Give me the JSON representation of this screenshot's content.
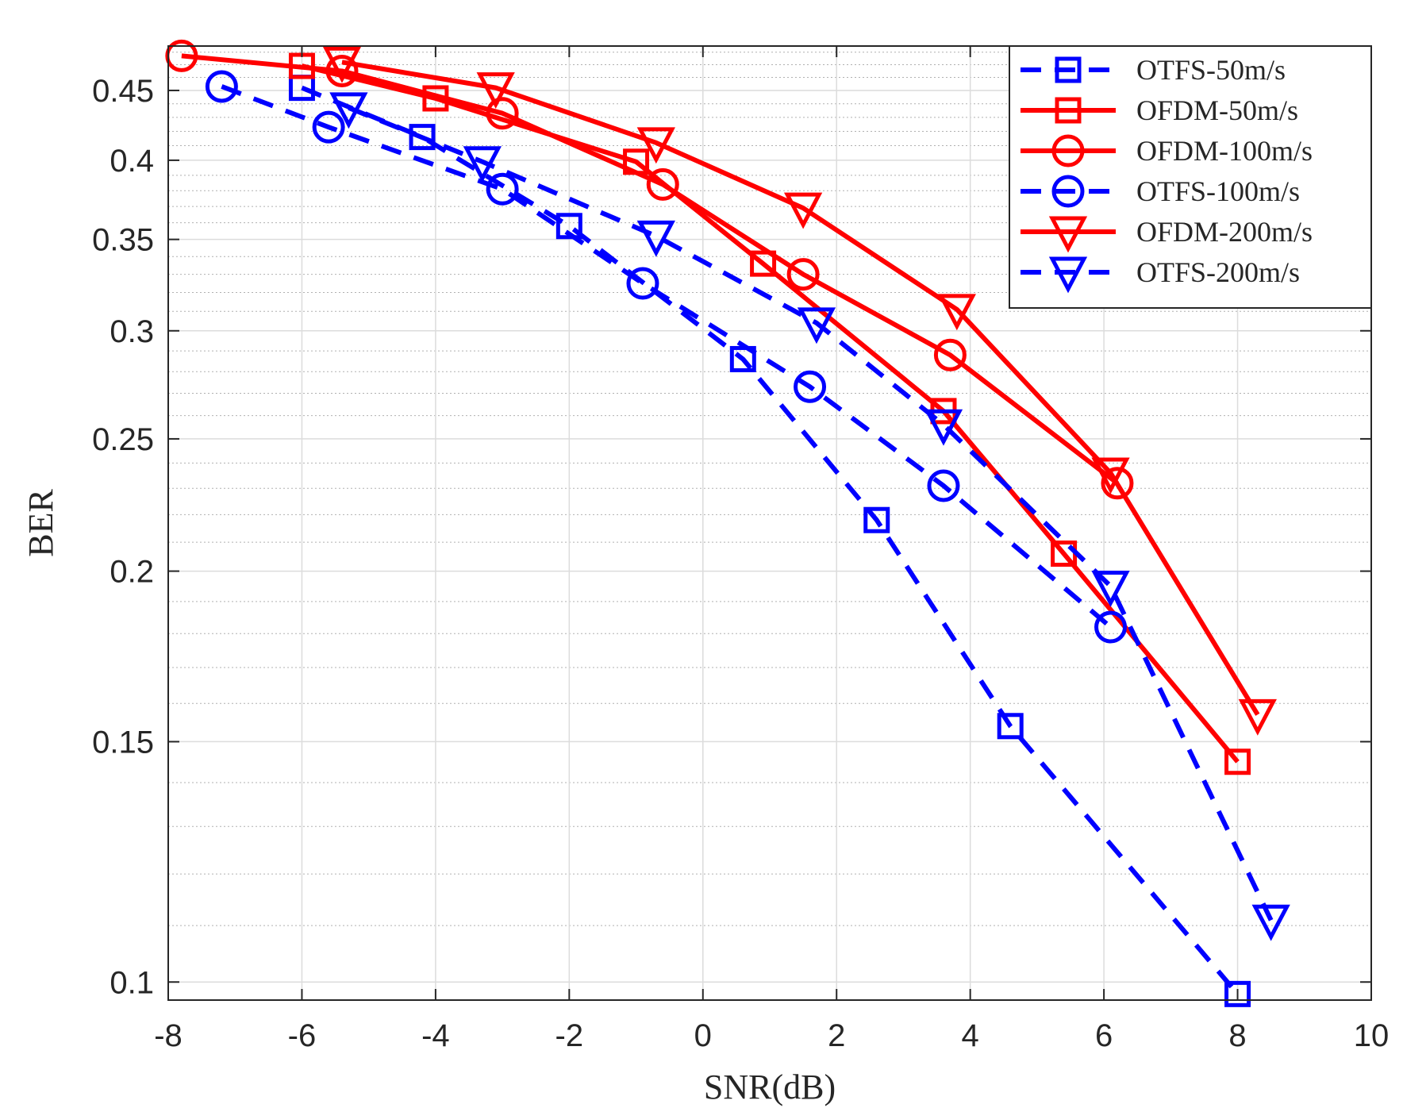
{
  "chart_data": {
    "type": "line",
    "title": "",
    "xlabel": "SNR(dB)",
    "ylabel": "BER",
    "xlim": [
      -8,
      10
    ],
    "ylim": [
      0.097,
      0.485
    ],
    "yscale": "log",
    "grid": true,
    "minor_grid": true,
    "legend_position": "top-right",
    "x_ticks": [
      -8,
      -6,
      -4,
      -2,
      0,
      2,
      4,
      6,
      8,
      10
    ],
    "x_tick_labels": [
      "-8",
      "-6",
      "-4",
      "-2",
      "0",
      "2",
      "4",
      "6",
      "8",
      "10"
    ],
    "y_ticks": [
      0.1,
      0.15,
      0.2,
      0.25,
      0.3,
      0.35,
      0.4,
      0.45
    ],
    "y_tick_labels": [
      "0.1",
      "0.15",
      "0.2",
      "0.25",
      "0.3",
      "0.35",
      "0.4",
      "0.45"
    ],
    "y_minor_ticks": [
      0.11,
      0.12,
      0.13,
      0.14,
      0.16,
      0.17,
      0.18,
      0.19,
      0.21,
      0.22,
      0.23,
      0.24,
      0.26,
      0.27,
      0.28,
      0.29,
      0.31,
      0.32,
      0.33,
      0.34,
      0.36,
      0.37,
      0.38,
      0.39,
      0.41,
      0.42,
      0.43,
      0.44,
      0.46,
      0.47,
      0.48
    ],
    "series": [
      {
        "name": "OTFS-50m/s",
        "color": "#0000ff",
        "dash": "dashed",
        "marker": "square",
        "x": [
          -6.0,
          -4.2,
          -2.0,
          0.6,
          2.6,
          4.6,
          8.0
        ],
        "y": [
          0.452,
          0.416,
          0.358,
          0.286,
          0.218,
          0.154,
          0.098
        ]
      },
      {
        "name": "OFDM-50m/s",
        "color": "#ff0000",
        "dash": "solid",
        "marker": "square",
        "x": [
          -6.0,
          -4.0,
          -1.0,
          0.9,
          3.6,
          5.4,
          8.0
        ],
        "y": [
          0.469,
          0.444,
          0.399,
          0.336,
          0.262,
          0.206,
          0.145
        ]
      },
      {
        "name": "OFDM-100m/s",
        "color": "#ff0000",
        "dash": "solid",
        "marker": "circle",
        "x": [
          -7.8,
          -5.4,
          -3.0,
          -0.6,
          1.5,
          3.7,
          6.2
        ],
        "y": [
          0.477,
          0.465,
          0.433,
          0.384,
          0.33,
          0.288,
          0.232
        ]
      },
      {
        "name": "OTFS-100m/s",
        "color": "#0000ff",
        "dash": "dashed",
        "marker": "circle",
        "x": [
          -7.2,
          -5.6,
          -3.0,
          -0.9,
          1.6,
          3.6,
          6.1
        ],
        "y": [
          0.453,
          0.423,
          0.381,
          0.325,
          0.273,
          0.231,
          0.182
        ]
      },
      {
        "name": "OFDM-200m/s",
        "color": "#ff0000",
        "dash": "solid",
        "marker": "triangle-down",
        "x": [
          -5.4,
          -3.1,
          -0.7,
          1.5,
          3.8,
          6.1,
          8.3
        ],
        "y": [
          0.472,
          0.452,
          0.412,
          0.369,
          0.311,
          0.236,
          0.157
        ]
      },
      {
        "name": "OTFS-200m/s",
        "color": "#0000ff",
        "dash": "dashed",
        "marker": "triangle-down",
        "x": [
          -5.3,
          -3.3,
          -0.7,
          1.7,
          3.6,
          6.1,
          8.5
        ],
        "y": [
          0.437,
          0.399,
          0.352,
          0.304,
          0.256,
          0.195,
          0.111
        ]
      }
    ]
  }
}
